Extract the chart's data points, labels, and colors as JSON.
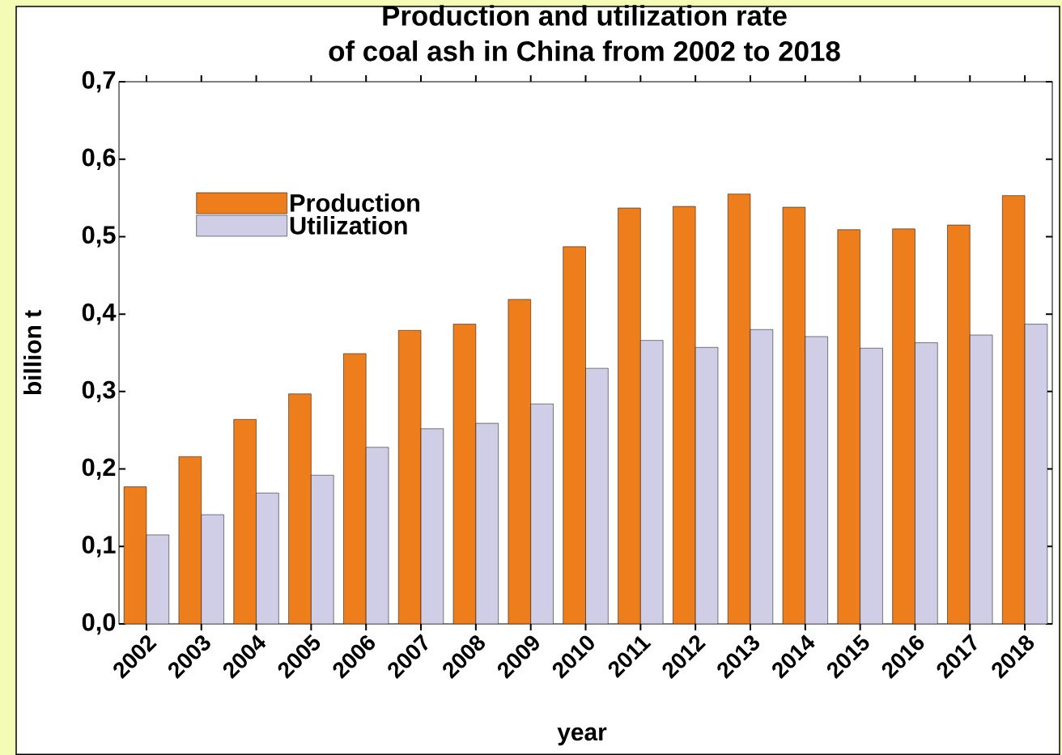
{
  "chart_data": {
    "type": "bar",
    "title": "Production and utilization rate of coal ash in China from 2002 to 2018",
    "xlabel": "year",
    "ylabel": "billion t",
    "categories": [
      "2002",
      "2003",
      "2004",
      "2005",
      "2006",
      "2007",
      "2008",
      "2009",
      "2010",
      "2011",
      "2012",
      "2013",
      "2014",
      "2015",
      "2016",
      "2017",
      "2018"
    ],
    "series": [
      {
        "name": "Production",
        "color": "#ee7d1c",
        "values": [
          0.177,
          0.216,
          0.264,
          0.297,
          0.349,
          0.379,
          0.387,
          0.419,
          0.487,
          0.537,
          0.539,
          0.555,
          0.538,
          0.509,
          0.51,
          0.515,
          0.553
        ]
      },
      {
        "name": "Utilization",
        "color": "#d0cde6",
        "values": [
          0.115,
          0.141,
          0.169,
          0.192,
          0.228,
          0.252,
          0.259,
          0.284,
          0.33,
          0.366,
          0.357,
          0.38,
          0.371,
          0.356,
          0.363,
          0.373,
          0.387
        ]
      }
    ],
    "ylim": [
      0,
      0.7
    ],
    "yticks": [
      {
        "value": 0,
        "label": "0,0"
      },
      {
        "value": 0.1,
        "label": "0,1"
      },
      {
        "value": 0.2,
        "label": "0,2"
      },
      {
        "value": 0.3,
        "label": "0,3"
      },
      {
        "value": 0.4,
        "label": "0,4"
      },
      {
        "value": 0.5,
        "label": "0,5"
      },
      {
        "value": 0.6,
        "label": "0,6"
      },
      {
        "value": 0.7,
        "label": "0,7"
      }
    ],
    "legend": "top left",
    "grid": false
  }
}
